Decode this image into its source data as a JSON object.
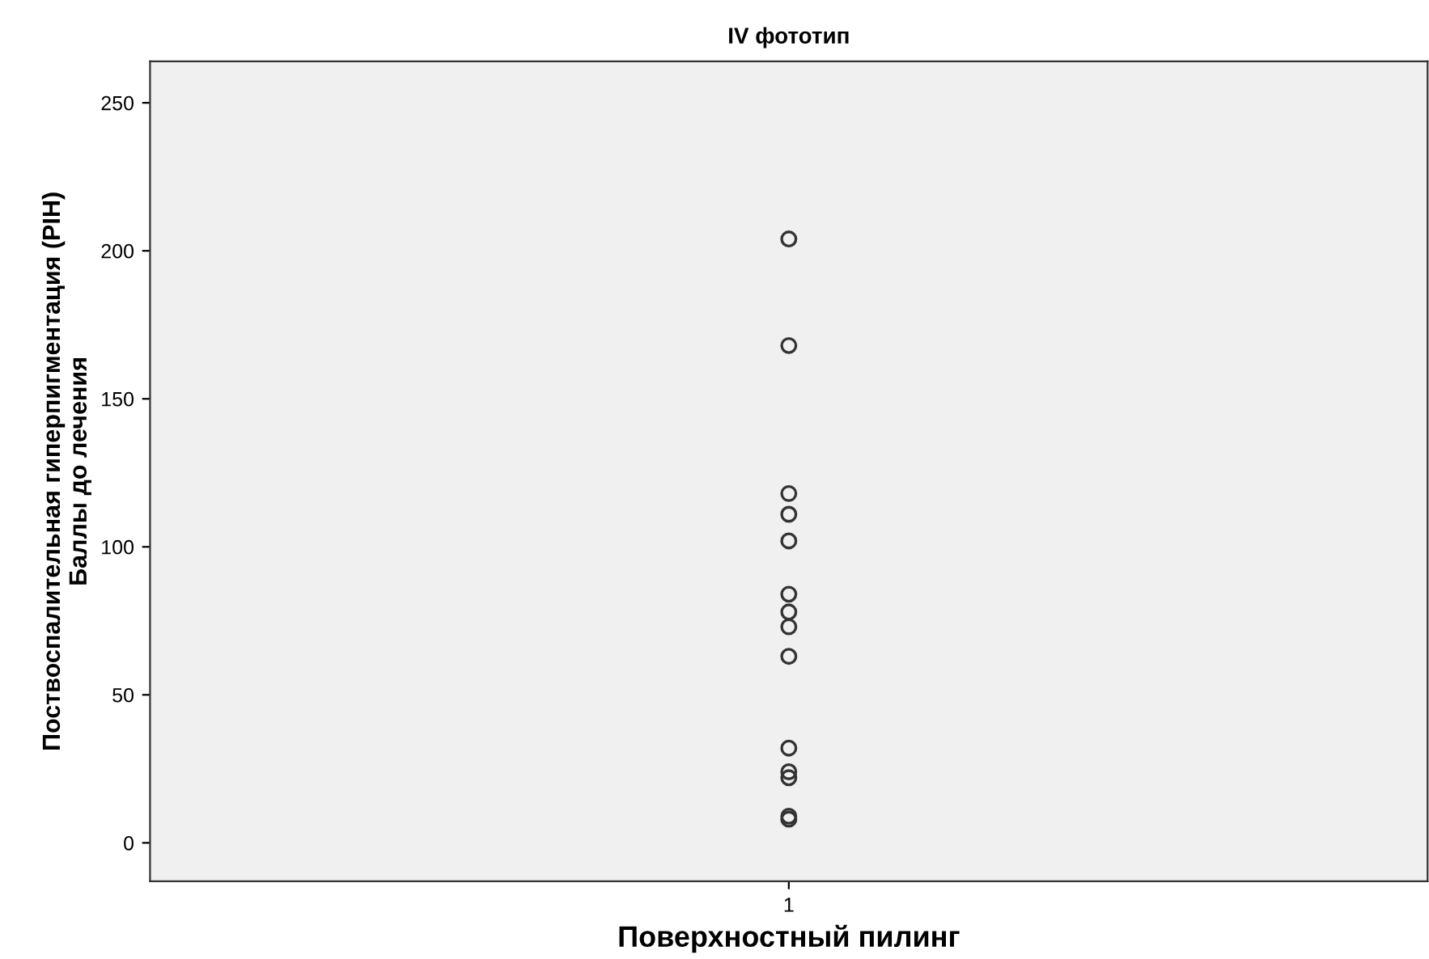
{
  "chart_data": {
    "type": "scatter",
    "title": "IV фототип",
    "xlabel": "Поверхностный пилинг",
    "ylabel": "Поствоспалительная гиперпигментация (PIH)\nБаллы до лечения",
    "categories": [
      "1"
    ],
    "series": [
      {
        "color": "#333333",
        "x": [
          "1",
          "1",
          "1",
          "1",
          "1",
          "1",
          "1",
          "1",
          "1",
          "1",
          "1",
          "1",
          "1",
          "1"
        ],
        "values": [
          204,
          168,
          118,
          111,
          102,
          84,
          78,
          73,
          63,
          32,
          24,
          22,
          9,
          8
        ]
      }
    ],
    "ylim": [
      -13,
      264
    ],
    "yticks": [
      0,
      50,
      100,
      150,
      200,
      250
    ],
    "grid": false,
    "marker": "circle"
  }
}
